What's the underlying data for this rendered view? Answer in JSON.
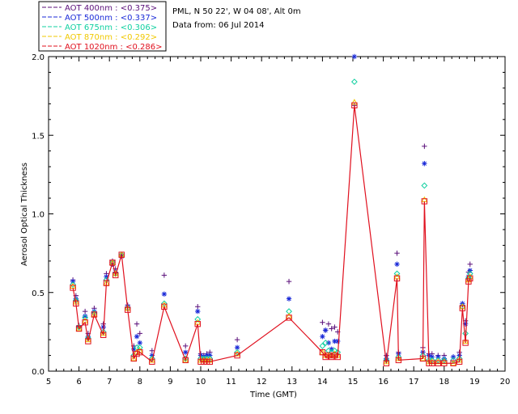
{
  "chart_data": {
    "type": "line",
    "title_lines": [
      "PML, N 50 22', W 04 08', Alt 0m",
      "Data from: 06 Jul 2014"
    ],
    "xlabel": "Time (GMT)",
    "ylabel": "Aerosol Optical Thickness",
    "xlim": [
      5,
      20
    ],
    "ylim": [
      0.0,
      2.0
    ],
    "xticks": [
      "5",
      "6",
      "7",
      "8",
      "9",
      "10",
      "11",
      "12",
      "13",
      "14",
      "15",
      "16",
      "17",
      "18",
      "19",
      "20"
    ],
    "yticks": [
      "0.0",
      "0.5",
      "1.0",
      "1.5",
      "2.0"
    ],
    "legend_position": "top-left",
    "series": [
      {
        "name": "AOT 400nm",
        "label": "AOT  400nm : ",
        "mean": "<0.375>",
        "color": "#5a0f7a",
        "marker": "plus",
        "connected": false,
        "points": [
          [
            5.8,
            0.58
          ],
          [
            5.9,
            0.48
          ],
          [
            6.0,
            0.29
          ],
          [
            6.2,
            0.38
          ],
          [
            6.3,
            0.24
          ],
          [
            6.5,
            0.4
          ],
          [
            6.8,
            0.3
          ],
          [
            6.9,
            0.62
          ],
          [
            7.1,
            0.7
          ],
          [
            7.2,
            0.65
          ],
          [
            7.4,
            0.74
          ],
          [
            7.6,
            0.42
          ],
          [
            7.8,
            0.16
          ],
          [
            7.9,
            0.3
          ],
          [
            8.0,
            0.24
          ],
          [
            8.4,
            0.13
          ],
          [
            8.8,
            0.61
          ],
          [
            9.5,
            0.16
          ],
          [
            9.9,
            0.41
          ],
          [
            10.0,
            0.11
          ],
          [
            10.1,
            0.1
          ],
          [
            10.2,
            0.11
          ],
          [
            10.3,
            0.12
          ],
          [
            11.2,
            0.2
          ],
          [
            12.9,
            0.57
          ],
          [
            14.0,
            0.31
          ],
          [
            14.1,
            0.26
          ],
          [
            14.2,
            0.3
          ],
          [
            14.3,
            0.27
          ],
          [
            14.4,
            0.28
          ],
          [
            14.5,
            0.25
          ],
          [
            15.05,
            1.69
          ],
          [
            16.1,
            0.1
          ],
          [
            16.45,
            0.75
          ],
          [
            16.5,
            0.12
          ],
          [
            17.3,
            0.15
          ],
          [
            17.35,
            1.43
          ],
          [
            17.5,
            0.11
          ],
          [
            17.6,
            0.11
          ],
          [
            17.8,
            0.1
          ],
          [
            18.0,
            0.1
          ],
          [
            18.3,
            0.09
          ],
          [
            18.5,
            0.12
          ],
          [
            18.6,
            0.42
          ],
          [
            18.7,
            0.32
          ],
          [
            18.8,
            0.63
          ],
          [
            18.85,
            0.68
          ]
        ]
      },
      {
        "name": "AOT 500nm",
        "label": "AOT  500nm : ",
        "mean": "<0.337>",
        "color": "#1a2ad8",
        "marker": "asterisk",
        "connected": false,
        "points": [
          [
            5.8,
            0.57
          ],
          [
            5.9,
            0.46
          ],
          [
            6.0,
            0.28
          ],
          [
            6.2,
            0.35
          ],
          [
            6.3,
            0.22
          ],
          [
            6.5,
            0.38
          ],
          [
            6.8,
            0.28
          ],
          [
            6.9,
            0.6
          ],
          [
            7.1,
            0.68
          ],
          [
            7.2,
            0.63
          ],
          [
            7.4,
            0.73
          ],
          [
            7.6,
            0.41
          ],
          [
            7.8,
            0.14
          ],
          [
            7.9,
            0.22
          ],
          [
            8.0,
            0.18
          ],
          [
            8.4,
            0.1
          ],
          [
            8.8,
            0.49
          ],
          [
            9.5,
            0.12
          ],
          [
            9.9,
            0.38
          ],
          [
            10.0,
            0.1
          ],
          [
            10.1,
            0.09
          ],
          [
            10.2,
            0.1
          ],
          [
            10.3,
            0.1
          ],
          [
            11.2,
            0.15
          ],
          [
            12.9,
            0.46
          ],
          [
            14.0,
            0.22
          ],
          [
            14.1,
            0.26
          ],
          [
            14.2,
            0.18
          ],
          [
            14.3,
            0.14
          ],
          [
            14.4,
            0.19
          ],
          [
            14.5,
            0.19
          ],
          [
            15.05,
            2.0
          ],
          [
            16.1,
            0.08
          ],
          [
            16.45,
            0.68
          ],
          [
            16.5,
            0.11
          ],
          [
            17.3,
            0.12
          ],
          [
            17.35,
            1.32
          ],
          [
            17.5,
            0.1
          ],
          [
            17.6,
            0.09
          ],
          [
            17.8,
            0.09
          ],
          [
            18.0,
            0.08
          ],
          [
            18.3,
            0.09
          ],
          [
            18.5,
            0.1
          ],
          [
            18.6,
            0.43
          ],
          [
            18.7,
            0.3
          ],
          [
            18.8,
            0.6
          ],
          [
            18.85,
            0.64
          ]
        ]
      },
      {
        "name": "AOT 675nm",
        "label": "AOT  675nm : ",
        "mean": "<0.306>",
        "color": "#10d0a0",
        "marker": "diamond",
        "connected": false,
        "points": [
          [
            5.8,
            0.55
          ],
          [
            5.9,
            0.45
          ],
          [
            6.0,
            0.28
          ],
          [
            6.2,
            0.34
          ],
          [
            6.3,
            0.21
          ],
          [
            6.5,
            0.37
          ],
          [
            6.8,
            0.25
          ],
          [
            6.9,
            0.58
          ],
          [
            7.1,
            0.69
          ],
          [
            7.2,
            0.62
          ],
          [
            7.4,
            0.74
          ],
          [
            7.6,
            0.4
          ],
          [
            7.8,
            0.1
          ],
          [
            7.9,
            0.15
          ],
          [
            8.0,
            0.15
          ],
          [
            8.4,
            0.08
          ],
          [
            8.8,
            0.43
          ],
          [
            9.5,
            0.08
          ],
          [
            9.9,
            0.33
          ],
          [
            10.0,
            0.08
          ],
          [
            10.1,
            0.08
          ],
          [
            10.2,
            0.08
          ],
          [
            10.3,
            0.08
          ],
          [
            11.2,
            0.12
          ],
          [
            12.9,
            0.38
          ],
          [
            14.0,
            0.16
          ],
          [
            14.1,
            0.18
          ],
          [
            14.2,
            0.13
          ],
          [
            14.3,
            0.12
          ],
          [
            14.4,
            0.13
          ],
          [
            14.5,
            0.12
          ],
          [
            15.05,
            1.84
          ],
          [
            16.1,
            0.07
          ],
          [
            16.45,
            0.62
          ],
          [
            16.5,
            0.09
          ],
          [
            17.3,
            0.1
          ],
          [
            17.35,
            1.18
          ],
          [
            17.5,
            0.07
          ],
          [
            17.6,
            0.07
          ],
          [
            17.8,
            0.07
          ],
          [
            18.0,
            0.07
          ],
          [
            18.3,
            0.07
          ],
          [
            18.5,
            0.08
          ],
          [
            18.6,
            0.41
          ],
          [
            18.7,
            0.24
          ],
          [
            18.8,
            0.59
          ],
          [
            18.85,
            0.62
          ]
        ]
      },
      {
        "name": "AOT 870nm",
        "label": "AOT  870nm : ",
        "mean": "<0.292>",
        "color": "#f0c800",
        "marker": "triangle",
        "connected": false,
        "points": [
          [
            5.8,
            0.54
          ],
          [
            5.9,
            0.44
          ],
          [
            6.0,
            0.27
          ],
          [
            6.2,
            0.32
          ],
          [
            6.3,
            0.2
          ],
          [
            6.5,
            0.36
          ],
          [
            6.8,
            0.24
          ],
          [
            6.9,
            0.56
          ],
          [
            7.1,
            0.69
          ],
          [
            7.2,
            0.62
          ],
          [
            7.4,
            0.74
          ],
          [
            7.6,
            0.4
          ],
          [
            7.8,
            0.08
          ],
          [
            7.9,
            0.12
          ],
          [
            8.0,
            0.13
          ],
          [
            8.4,
            0.07
          ],
          [
            8.8,
            0.42
          ],
          [
            9.5,
            0.07
          ],
          [
            9.9,
            0.31
          ],
          [
            10.0,
            0.07
          ],
          [
            10.1,
            0.07
          ],
          [
            10.2,
            0.07
          ],
          [
            10.3,
            0.07
          ],
          [
            11.2,
            0.11
          ],
          [
            12.9,
            0.35
          ],
          [
            14.0,
            0.12
          ],
          [
            14.1,
            0.1
          ],
          [
            14.2,
            0.1
          ],
          [
            14.3,
            0.1
          ],
          [
            14.4,
            0.11
          ],
          [
            14.5,
            0.1
          ],
          [
            15.05,
            1.71
          ],
          [
            16.1,
            0.06
          ],
          [
            16.45,
            0.6
          ],
          [
            16.5,
            0.08
          ],
          [
            17.3,
            0.08
          ],
          [
            17.35,
            1.09
          ],
          [
            17.5,
            0.06
          ],
          [
            17.6,
            0.06
          ],
          [
            17.8,
            0.06
          ],
          [
            18.0,
            0.06
          ],
          [
            18.3,
            0.05
          ],
          [
            18.5,
            0.07
          ],
          [
            18.6,
            0.41
          ],
          [
            18.7,
            0.19
          ],
          [
            18.8,
            0.58
          ],
          [
            18.85,
            0.6
          ]
        ]
      },
      {
        "name": "AOT 1020nm",
        "label": "AOT 1020nm : ",
        "mean": "<0.286>",
        "color": "#e0101e",
        "marker": "square",
        "connected": true,
        "points": [
          [
            5.8,
            0.53
          ],
          [
            5.9,
            0.43
          ],
          [
            6.0,
            0.27
          ],
          [
            6.2,
            0.31
          ],
          [
            6.3,
            0.19
          ],
          [
            6.5,
            0.36
          ],
          [
            6.8,
            0.23
          ],
          [
            6.9,
            0.56
          ],
          [
            7.1,
            0.69
          ],
          [
            7.2,
            0.61
          ],
          [
            7.4,
            0.74
          ],
          [
            7.6,
            0.39
          ],
          [
            7.8,
            0.08
          ],
          [
            7.9,
            0.11
          ],
          [
            8.0,
            0.12
          ],
          [
            8.4,
            0.06
          ],
          [
            8.8,
            0.41
          ],
          [
            9.5,
            0.07
          ],
          [
            9.9,
            0.3
          ],
          [
            10.0,
            0.06
          ],
          [
            10.1,
            0.06
          ],
          [
            10.2,
            0.06
          ],
          [
            10.3,
            0.06
          ],
          [
            11.2,
            0.1
          ],
          [
            12.9,
            0.34
          ],
          [
            14.0,
            0.12
          ],
          [
            14.1,
            0.09
          ],
          [
            14.2,
            0.1
          ],
          [
            14.3,
            0.09
          ],
          [
            14.4,
            0.1
          ],
          [
            14.5,
            0.09
          ],
          [
            15.05,
            1.69
          ],
          [
            16.1,
            0.05
          ],
          [
            16.45,
            0.59
          ],
          [
            16.5,
            0.07
          ],
          [
            17.3,
            0.08
          ],
          [
            17.35,
            1.08
          ],
          [
            17.5,
            0.05
          ],
          [
            17.6,
            0.05
          ],
          [
            17.8,
            0.05
          ],
          [
            18.0,
            0.05
          ],
          [
            18.3,
            0.05
          ],
          [
            18.5,
            0.06
          ],
          [
            18.6,
            0.4
          ],
          [
            18.7,
            0.18
          ],
          [
            18.8,
            0.57
          ],
          [
            18.85,
            0.59
          ]
        ]
      }
    ]
  }
}
